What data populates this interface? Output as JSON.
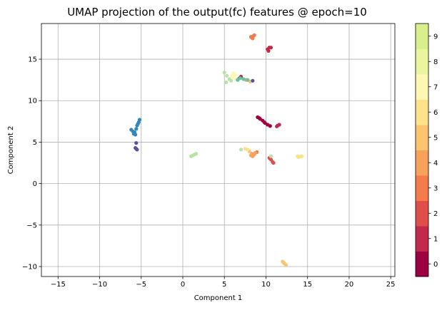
{
  "chart_data": {
    "type": "scatter",
    "title": "UMAP projection of the output(fc) features @ epoch=10",
    "xlabel": "Component 1",
    "ylabel": "Component 2",
    "xlim": [
      -17,
      25.5
    ],
    "ylim": [
      -11.2,
      19.3
    ],
    "xticks": [
      -15,
      -10,
      -5,
      0,
      5,
      10,
      15,
      20,
      25
    ],
    "yticks": [
      -10,
      -5,
      0,
      5,
      10,
      15
    ],
    "grid": true,
    "colorbar": {
      "ticks": [
        0,
        1,
        2,
        3,
        4,
        5,
        6,
        7,
        8,
        9
      ],
      "colors": [
        "#9e0142",
        "#c2294a",
        "#df4e4b",
        "#f47b4b",
        "#f8a15b",
        "#fdc470",
        "#fde28a",
        "#fdf7b1",
        "#eaf69e",
        "#d9ef8b"
      ]
    },
    "clusters": [
      {
        "label": 0,
        "color": "#9e0142",
        "points": [
          [
            9.0,
            8.0
          ],
          [
            9.3,
            7.8
          ],
          [
            9.6,
            7.6
          ],
          [
            9.9,
            7.3
          ],
          [
            10.2,
            7.1
          ],
          [
            10.5,
            6.95
          ],
          [
            9.2,
            7.9
          ],
          [
            9.8,
            7.4
          ]
        ]
      },
      {
        "label": 1,
        "color": "#c2294a",
        "points": [
          [
            11.3,
            6.9
          ],
          [
            11.6,
            7.1
          ],
          [
            11.4,
            7.0
          ],
          [
            10.2,
            16.2
          ],
          [
            10.4,
            16.4
          ],
          [
            10.6,
            16.4
          ],
          [
            10.3,
            16.0
          ],
          [
            7.0,
            12.9
          ],
          [
            6.8,
            12.7
          ]
        ]
      },
      {
        "label": 2,
        "color": "#df4e4b",
        "points": [
          [
            10.4,
            3.1
          ],
          [
            10.6,
            2.9
          ],
          [
            10.8,
            2.6
          ],
          [
            10.9,
            2.5
          ],
          [
            10.5,
            3.0
          ]
        ]
      },
      {
        "label": 3,
        "color": "#f47b4b",
        "points": [
          [
            8.3,
            17.6
          ],
          [
            8.5,
            17.8
          ],
          [
            8.4,
            17.5
          ],
          [
            8.6,
            17.9
          ],
          [
            8.2,
            17.7
          ],
          [
            8.9,
            3.8
          ]
        ]
      },
      {
        "label": 4,
        "color": "#f8a15b",
        "points": [
          [
            8.2,
            3.4
          ],
          [
            8.4,
            3.3
          ],
          [
            8.6,
            3.5
          ],
          [
            8.7,
            3.7
          ],
          [
            8.3,
            3.6
          ],
          [
            7.6,
            12.5
          ]
        ]
      },
      {
        "label": 5,
        "color": "#fdc470",
        "points": [
          [
            12.0,
            -9.4
          ],
          [
            12.2,
            -9.6
          ],
          [
            12.4,
            -9.8
          ],
          [
            12.1,
            -9.5
          ],
          [
            8.0,
            3.9
          ],
          [
            8.1,
            12.3
          ]
        ]
      },
      {
        "label": 6,
        "color": "#fde28a",
        "points": [
          [
            13.8,
            3.3
          ],
          [
            14.1,
            3.25
          ],
          [
            14.3,
            3.3
          ],
          [
            13.9,
            3.2
          ],
          [
            7.5,
            4.2
          ],
          [
            7.8,
            4.1
          ]
        ]
      },
      {
        "label": 7,
        "color": "#fdf7b1",
        "points": [
          [
            5.9,
            13.0
          ],
          [
            6.1,
            13.3
          ],
          [
            6.3,
            13.1
          ],
          [
            6.0,
            12.8
          ],
          [
            6.4,
            12.6
          ]
        ]
      },
      {
        "label": 8,
        "color": "#b6e3a6",
        "points": [
          [
            1.0,
            3.3
          ],
          [
            1.2,
            3.4
          ],
          [
            1.4,
            3.5
          ],
          [
            1.6,
            3.6
          ],
          [
            5.0,
            13.4
          ],
          [
            5.3,
            13.0
          ],
          [
            5.6,
            12.6
          ],
          [
            5.2,
            12.2
          ],
          [
            5.8,
            12.4
          ],
          [
            10.6,
            3.3
          ],
          [
            7.0,
            4.1
          ]
        ]
      },
      {
        "label": 9,
        "color": "#3288bd",
        "points": [
          [
            -6.2,
            6.5
          ],
          [
            -6.0,
            6.3
          ],
          [
            -5.8,
            6.2
          ],
          [
            -5.6,
            6.6
          ],
          [
            -5.5,
            7.0
          ],
          [
            -5.3,
            7.4
          ],
          [
            -5.2,
            7.7
          ],
          [
            -5.4,
            7.2
          ],
          [
            -5.9,
            6.0
          ],
          [
            -5.7,
            5.9
          ]
        ]
      },
      {
        "label": 9,
        "color": "#5e4fa2",
        "points": [
          [
            -5.6,
            4.2
          ],
          [
            -5.5,
            4.1
          ],
          [
            -5.7,
            4.3
          ],
          [
            -5.6,
            4.9
          ],
          [
            8.4,
            12.4
          ]
        ]
      },
      {
        "label": 9,
        "color": "#66c2a5",
        "points": [
          [
            6.9,
            12.7
          ],
          [
            7.3,
            12.6
          ],
          [
            7.8,
            12.5
          ],
          [
            6.6,
            12.5
          ]
        ]
      }
    ]
  }
}
